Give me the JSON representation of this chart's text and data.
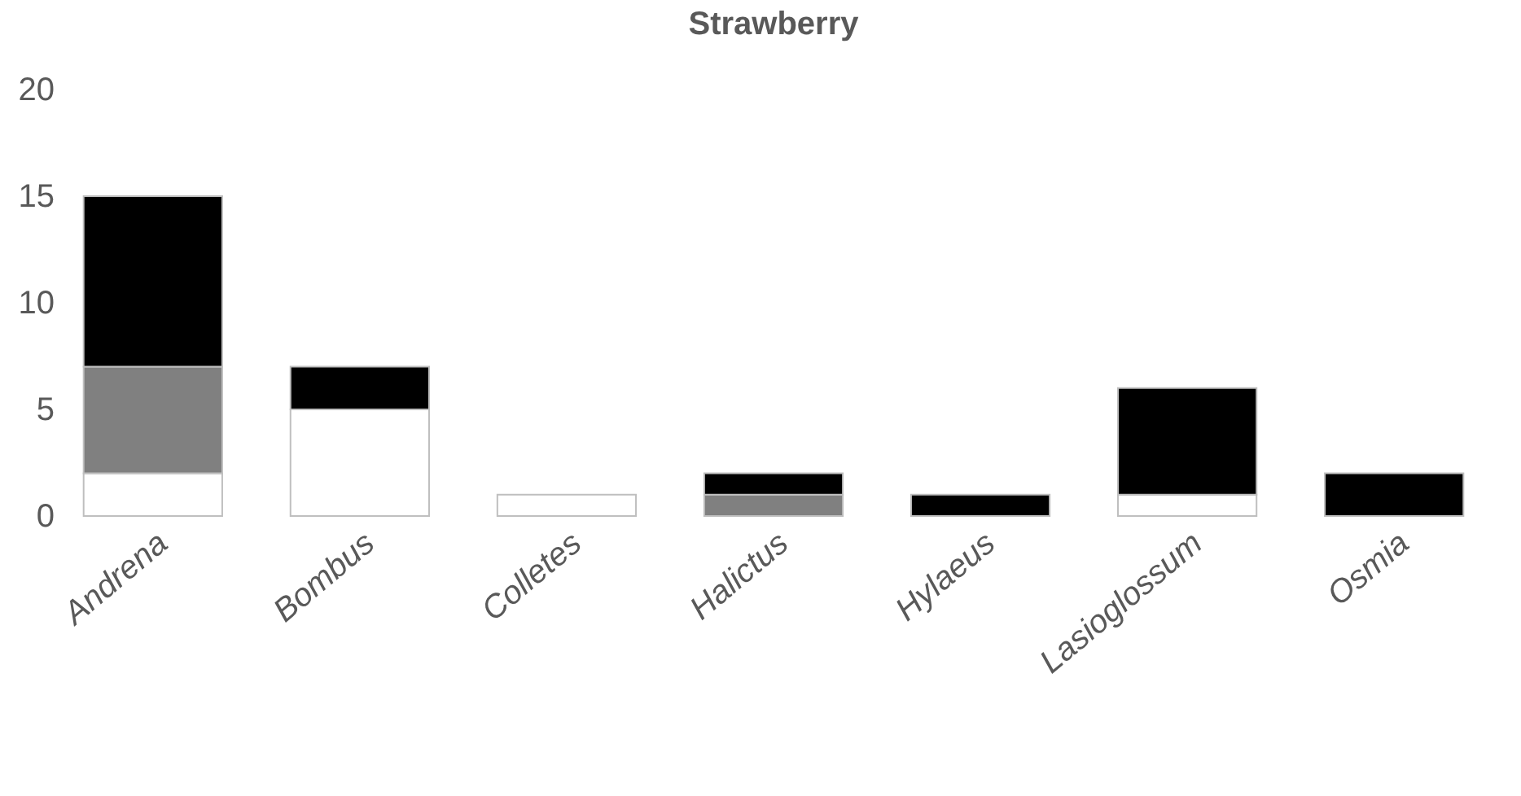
{
  "chart_data": {
    "type": "bar",
    "title": "Strawberry",
    "stacked": true,
    "categories": [
      "Andrena",
      "Bombus",
      "Colletes",
      "Halictus",
      "Hylaeus",
      "Lasioglossum",
      "Osmia"
    ],
    "series": [
      {
        "color": "#ffffff",
        "values": [
          2,
          5,
          1,
          null,
          null,
          1,
          null
        ]
      },
      {
        "color": "#808080",
        "values": [
          5,
          null,
          null,
          1,
          null,
          null,
          null
        ]
      },
      {
        "color": "#000000",
        "values": [
          8,
          2,
          null,
          1,
          1,
          5,
          2
        ]
      }
    ],
    "ylim": [
      0,
      20
    ],
    "yticks": [
      0,
      5,
      10,
      15,
      20
    ],
    "grid": false,
    "legend": false
  }
}
